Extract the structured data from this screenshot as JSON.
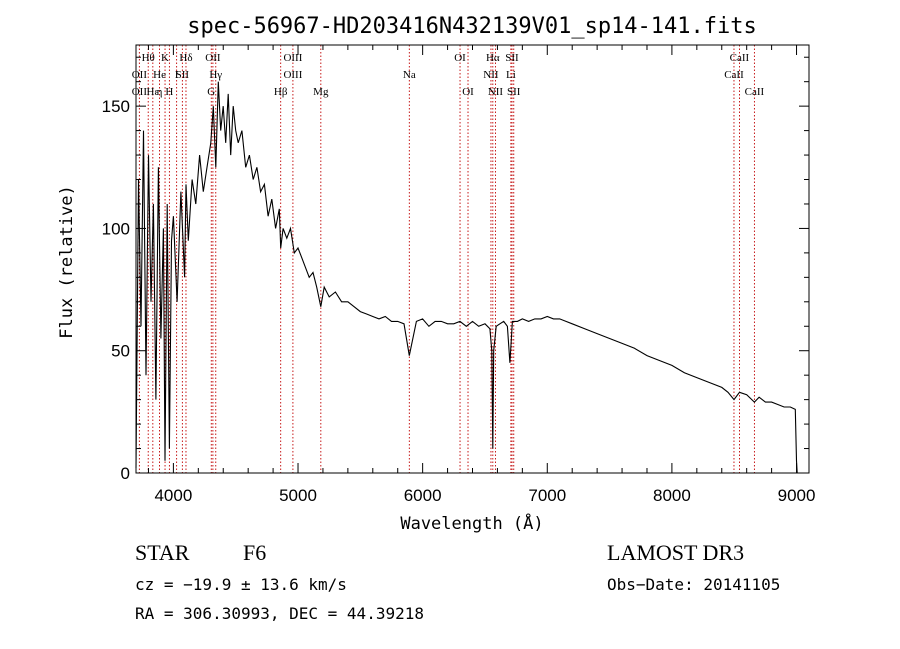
{
  "chart_data": {
    "type": "line",
    "title": "spec-56967-HD203416N432139V01_sp14-141.fits",
    "xlabel": "Wavelength (Å)",
    "ylabel": "Flux (relative)",
    "xlim": [
      3700,
      9100
    ],
    "ylim": [
      0,
      175
    ],
    "x_ticks": [
      {
        "value": 4000,
        "label": "4000"
      },
      {
        "value": 5000,
        "label": "5000"
      },
      {
        "value": 6000,
        "label": "6000"
      },
      {
        "value": 7000,
        "label": "7000"
      },
      {
        "value": 8000,
        "label": "8000"
      },
      {
        "value": 9000,
        "label": "9000"
      }
    ],
    "y_ticks": [
      {
        "value": 0,
        "label": "0"
      },
      {
        "value": 50,
        "label": "50"
      },
      {
        "value": 100,
        "label": "100"
      },
      {
        "value": 150,
        "label": "150"
      }
    ],
    "spectrum": {
      "x": [
        3700,
        3720,
        3740,
        3760,
        3780,
        3800,
        3820,
        3840,
        3860,
        3880,
        3900,
        3920,
        3933,
        3950,
        3968,
        3985,
        4000,
        4030,
        4060,
        4090,
        4101,
        4120,
        4150,
        4180,
        4210,
        4240,
        4270,
        4300,
        4320,
        4340,
        4360,
        4380,
        4400,
        4420,
        4440,
        4460,
        4480,
        4500,
        4520,
        4550,
        4580,
        4610,
        4640,
        4670,
        4700,
        4730,
        4760,
        4790,
        4820,
        4850,
        4861,
        4880,
        4910,
        4940,
        4970,
        5000,
        5030,
        5060,
        5090,
        5120,
        5150,
        5183,
        5210,
        5250,
        5300,
        5350,
        5400,
        5450,
        5500,
        5550,
        5600,
        5650,
        5700,
        5750,
        5800,
        5850,
        5893,
        5950,
        6000,
        6050,
        6100,
        6150,
        6200,
        6250,
        6300,
        6350,
        6400,
        6450,
        6500,
        6540,
        6555,
        6563,
        6570,
        6590,
        6620,
        6650,
        6680,
        6700,
        6720,
        6760,
        6800,
        6850,
        6900,
        6950,
        7000,
        7050,
        7100,
        7150,
        7200,
        7300,
        7400,
        7500,
        7600,
        7700,
        7800,
        7900,
        8000,
        8100,
        8200,
        8300,
        8400,
        8450,
        8498,
        8542,
        8600,
        8662,
        8700,
        8750,
        8800,
        8850,
        8900,
        8950,
        8990,
        9000,
        9005
      ],
      "y": [
        2,
        120,
        60,
        140,
        40,
        130,
        70,
        110,
        30,
        125,
        55,
        100,
        5,
        110,
        10,
        95,
        105,
        70,
        115,
        80,
        118,
        95,
        120,
        110,
        130,
        115,
        125,
        135,
        150,
        125,
        160,
        140,
        150,
        135,
        155,
        130,
        150,
        140,
        135,
        140,
        125,
        130,
        120,
        125,
        115,
        118,
        105,
        112,
        100,
        108,
        92,
        100,
        96,
        100,
        90,
        92,
        88,
        84,
        80,
        82,
        76,
        68,
        76,
        72,
        74,
        70,
        70,
        68,
        66,
        65,
        64,
        63,
        64,
        62,
        62,
        61,
        48,
        62,
        63,
        60,
        62,
        62,
        61,
        61,
        62,
        60,
        62,
        60,
        61,
        59,
        50,
        10,
        50,
        60,
        61,
        62,
        60,
        45,
        62,
        62,
        63,
        62,
        63,
        63,
        64,
        63,
        63,
        62,
        61,
        59,
        57,
        55,
        53,
        51,
        48,
        46,
        44,
        41,
        39,
        37,
        35,
        33,
        30,
        33,
        32,
        29,
        31,
        29,
        29,
        28,
        27,
        27,
        26,
        5,
        0
      ]
    },
    "lines": [
      {
        "label": "Hθ",
        "wave": 3798,
        "row": 1
      },
      {
        "label": "OII",
        "wave": 3727,
        "row": 2
      },
      {
        "label": "OII",
        "wave": 3727,
        "row": 3
      },
      {
        "label": "Hε",
        "wave": 3835,
        "row": 3
      },
      {
        "label": "He",
        "wave": 3889,
        "row": 2
      },
      {
        "label": "K",
        "wave": 3933,
        "row": 1
      },
      {
        "label": "η",
        "wave": 3889,
        "row": 3
      },
      {
        "label": "H",
        "wave": 3968,
        "row": 3
      },
      {
        "label": "I",
        "wave": 4026,
        "row": 2
      },
      {
        "label": "SII",
        "wave": 4072,
        "row": 2
      },
      {
        "label": "Hδ",
        "wave": 4101,
        "row": 1
      },
      {
        "label": "OII",
        "wave": 4317,
        "row": 1
      },
      {
        "label": "Hγ",
        "wave": 4340,
        "row": 2
      },
      {
        "label": "G",
        "wave": 4304,
        "row": 3
      },
      {
        "label": "OIII",
        "wave": 4959,
        "row": 1
      },
      {
        "label": "OIII",
        "wave": 4959,
        "row": 2
      },
      {
        "label": "Hβ",
        "wave": 4861,
        "row": 3
      },
      {
        "label": "Mg",
        "wave": 5183,
        "row": 3
      },
      {
        "label": "Na",
        "wave": 5893,
        "row": 2
      },
      {
        "label": "OI",
        "wave": 6300,
        "row": 1
      },
      {
        "label": "OI",
        "wave": 6364,
        "row": 3
      },
      {
        "label": "Hα",
        "wave": 6563,
        "row": 1
      },
      {
        "label": "SII",
        "wave": 6717,
        "row": 1
      },
      {
        "label": "NII",
        "wave": 6548,
        "row": 2
      },
      {
        "label": "Li",
        "wave": 6708,
        "row": 2
      },
      {
        "label": "NII",
        "wave": 6584,
        "row": 3
      },
      {
        "label": "SII",
        "wave": 6731,
        "row": 3
      },
      {
        "label": "CaII",
        "wave": 8542,
        "row": 1
      },
      {
        "label": "CaII",
        "wave": 8498,
        "row": 2
      },
      {
        "label": "CaII",
        "wave": 8662,
        "row": 3
      }
    ]
  },
  "info": {
    "object_class": "STAR",
    "subclass": "F6",
    "survey": "LAMOST DR3",
    "cz": "cz = −19.9 ± 13.6 km/s",
    "obs_date": "Obs−Date: 20141105",
    "coords": "RA = 306.30993, DEC =  44.39218"
  },
  "colors": {
    "spectrum": "#000000",
    "line_markers": "#c00000",
    "axes": "#000000",
    "background": "#ffffff"
  }
}
